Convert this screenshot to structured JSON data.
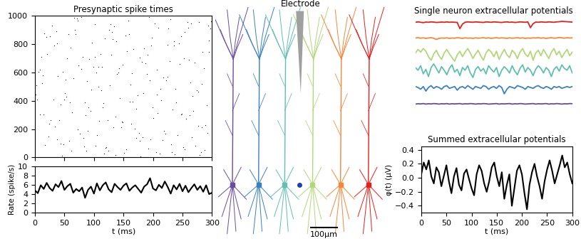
{
  "chart_data": [
    {
      "type": "scatter",
      "title": "Presynaptic spike times",
      "color": "#000000",
      "marker": "point",
      "tick_labels": "y",
      "xlim": [
        0,
        300
      ],
      "xticks": [
        0,
        50,
        100,
        150,
        200,
        250,
        300
      ],
      "ylim": [
        0,
        1000
      ],
      "yticks": [
        0,
        200,
        400,
        600,
        800,
        1000
      ],
      "x": [
        3,
        17,
        29,
        41,
        55,
        62,
        78,
        84,
        97,
        105,
        112,
        126,
        133,
        148,
        151,
        167,
        172,
        189,
        196,
        203,
        214,
        228,
        231,
        247,
        256,
        263,
        279,
        284,
        291,
        298,
        8,
        14,
        33,
        46,
        51,
        69,
        73,
        88,
        92,
        109,
        118,
        121,
        139,
        144,
        158,
        163,
        177,
        182,
        199,
        207,
        211,
        225,
        238,
        242,
        259,
        268,
        271,
        287,
        295,
        1,
        11,
        24,
        36,
        44,
        58,
        65,
        71,
        86,
        99,
        103,
        115,
        129,
        136,
        141,
        153,
        169,
        174,
        185,
        192,
        209,
        219,
        222,
        235,
        249,
        252,
        266,
        274,
        281,
        293,
        6,
        19,
        27,
        39,
        48,
        53,
        67,
        76,
        81,
        94,
        107,
        113,
        124,
        131,
        146,
        156,
        161,
        179,
        187,
        194,
        201,
        216,
        229,
        233,
        244,
        254,
        261,
        277,
        289,
        297,
        13,
        21,
        31,
        43,
        57,
        63,
        74,
        89,
        101,
        117,
        127,
        137,
        143,
        159,
        171,
        183,
        197,
        205,
        217,
        226,
        239,
        251,
        264,
        276,
        283,
        299,
        9,
        26,
        38,
        49,
        61,
        79,
        91,
        104,
        119,
        132,
        149,
        162,
        176,
        191,
        206,
        221,
        236,
        248,
        258,
        272,
        286,
        4,
        16,
        34,
        52,
        68,
        82,
        96,
        111,
        123,
        138,
        154,
        166,
        181,
        193,
        208,
        224,
        237,
        253,
        267,
        282,
        294,
        23,
        47,
        72,
        87,
        102,
        116,
        134,
        147,
        164,
        178,
        198,
        213,
        232,
        245,
        262,
        278,
        292,
        12,
        37,
        59,
        83,
        108,
        128
      ],
      "values": [
        512,
        87,
        934,
        266,
        701,
        45,
        623,
        389,
        812,
        158,
        477,
        903,
        214,
        655,
        31,
        768,
        342,
        589,
        126,
        947,
        403,
        681,
        92,
        857,
        275,
        530,
        18,
        744,
        369,
        961,
        621,
        304,
        789,
        12,
        456,
        873,
        197,
        538,
        695,
        261,
        840,
        73,
        588,
        419,
        966,
        237,
        704,
        145,
        352,
        619,
        27,
        795,
        483,
        160,
        918,
        331,
        672,
        54,
        827,
        445,
        709,
        238,
        891,
        375,
        116,
        562,
        983,
        297,
        640,
        81,
        356,
        724,
        19,
        598,
        863,
        201,
        437,
        770,
        64,
        915,
        188,
        545,
        820,
        307,
        699,
        142,
        476,
        38,
        931,
        603,
        851,
        262,
        577,
        94,
        428,
        985,
        167,
        713,
        330,
        502,
        639,
        49,
        887,
        215,
        751,
        396,
        9,
        664,
        543,
        278,
        122,
        976,
        341,
        805,
        57,
        690,
        463,
        228,
        914,
        580,
        733,
        410,
        96,
        872,
        318,
        651,
        187,
        944,
        25,
        509,
        287,
        628,
        874,
        140,
        457,
        793,
        36,
        565,
        912,
        389,
        74,
        946,
        223,
        518,
        685,
        302,
        859,
        129,
        411,
        776,
        992,
        355,
        601,
        68,
        837,
        249,
        515,
        172,
        728,
        443,
        166,
        789,
        302,
        958,
        84,
        632,
        407,
        875,
        218,
        551,
        901,
        140,
        478,
        733,
        265,
        822,
        59,
        396,
        676,
        993,
        315,
        570,
        23,
        889,
        432,
        211,
        748,
        150,
        605,
        968,
        46,
        711,
        382,
        927,
        253,
        594,
        118,
        847,
        486,
        37,
        661,
        298,
        956,
        173,
        524,
        807,
        391,
        76,
        639,
        940
      ]
    },
    {
      "type": "line",
      "x_label": "t (ms)",
      "y_label": "Rate (spike/s)",
      "color": "#000000",
      "xlim": [
        0,
        300
      ],
      "xticks": [
        0,
        50,
        100,
        150,
        200,
        250,
        300
      ],
      "ylim": [
        0,
        10
      ],
      "yticks": [
        0,
        2,
        4,
        6,
        8,
        10
      ],
      "x": [
        0,
        5,
        10,
        15,
        20,
        25,
        30,
        35,
        40,
        45,
        50,
        55,
        60,
        65,
        70,
        75,
        80,
        85,
        90,
        95,
        100,
        105,
        110,
        115,
        120,
        125,
        130,
        135,
        140,
        145,
        150,
        155,
        160,
        165,
        170,
        175,
        180,
        185,
        190,
        195,
        200,
        205,
        210,
        215,
        220,
        225,
        230,
        235,
        240,
        245,
        250,
        255,
        260,
        265,
        270,
        275,
        280,
        285,
        290,
        295,
        300
      ],
      "values": [
        4.8,
        4.2,
        5.9,
        5.1,
        6.4,
        5.3,
        4.7,
        6.1,
        5.5,
        6.8,
        4.9,
        5.7,
        6.2,
        4.3,
        5.1,
        4.6,
        5.4,
        3.2,
        4.9,
        5.6,
        4.1,
        6.3,
        4.8,
        5.9,
        6.5,
        5.0,
        4.4,
        6.2,
        5.5,
        4.9,
        5.8,
        6.3,
        4.7,
        5.4,
        5.9,
        5.1,
        4.3,
        5.6,
        6.1,
        7.4,
        5.2,
        4.8,
        6.0,
        5.3,
        6.7,
        5.5,
        4.1,
        5.9,
        5.0,
        6.2,
        4.6,
        5.8,
        4.4,
        5.3,
        6.1,
        4.9,
        5.7,
        4.5,
        5.9,
        4.0,
        4.3
      ]
    },
    {
      "type": "line",
      "title": "Single neuron extracellular potentials",
      "tick_labels": false,
      "x": [
        0,
        5,
        10,
        15,
        20,
        25,
        30,
        35,
        40,
        45,
        50,
        55,
        60,
        65,
        70,
        75,
        80,
        85,
        90,
        95,
        100,
        105,
        110,
        115,
        120,
        125,
        130,
        135,
        140,
        145,
        150,
        155,
        160,
        165,
        170,
        175,
        180,
        185,
        190,
        195,
        200,
        205,
        210,
        215,
        220,
        225,
        230,
        235,
        240,
        245,
        250,
        255,
        260,
        265,
        270,
        275,
        280,
        285,
        290,
        295,
        300
      ],
      "series": [
        {
          "color": "#e3211c",
          "values": [
            0,
            0.02,
            0,
            -0.02,
            0.01,
            0,
            0.02,
            0.01,
            -0.01,
            0,
            0.01,
            0,
            0.02,
            0,
            0.01,
            0,
            -0.01,
            -0.35,
            -0.1,
            0,
            0.02,
            0.01,
            0,
            0.02,
            0.01,
            0,
            -0.01,
            0.02,
            0.01,
            0,
            0.02,
            0.01,
            0,
            -0.01,
            0.01,
            0.02,
            0,
            0.01,
            -0.01,
            0,
            0.02,
            0.01,
            0,
            0.02,
            -0.3,
            -0.08,
            0.01,
            0,
            0.02,
            0.01,
            0,
            0.02,
            0.01,
            0,
            0.02,
            0.03,
            0.05,
            0.04,
            0.03,
            0.02,
            0.01
          ]
        },
        {
          "color": "#f4873a",
          "values": [
            0.03,
            0.05,
            0.02,
            0.04,
            0.01,
            0.03,
            0.05,
            0.02,
            -0.05,
            0.01,
            0.03,
            0.02,
            0.04,
            0.01,
            0.03,
            0.02,
            0.05,
            0.03,
            0.01,
            0.04,
            0.02,
            0.03,
            0.01,
            0.04,
            0.02,
            0.03,
            0.05,
            0.02,
            0.04,
            0.01,
            0.03,
            0.05,
            0.02,
            0.04,
            0.03,
            0.01,
            0.04,
            0.02,
            0.03,
            0.05,
            0.02,
            0.04,
            0.01,
            0.03,
            0.02,
            0.04,
            0.03,
            0.05,
            0.02,
            0.04,
            0.01,
            0.03,
            0.05,
            0.02,
            0.03,
            0.06,
            0.04,
            0.02,
            0.05,
            0.03,
            0.04
          ]
        },
        {
          "color": "#b2d77a",
          "values": [
            0.1,
            0.3,
            0.15,
            0.35,
            0.2,
            -0.1,
            -0.3,
            0.05,
            0.25,
            -0.05,
            -0.25,
            0.1,
            0.3,
            0.05,
            -0.15,
            -0.35,
            0.0,
            0.2,
            -0.1,
            0.15,
            0.35,
            0.1,
            -0.2,
            0.05,
            0.25,
            -0.05,
            -0.3,
            0.1,
            0.3,
            0.15,
            -0.1,
            0.2,
            -0.25,
            0.05,
            0.3,
            0.0,
            -0.15,
            0.25,
            0.1,
            -0.2,
            0.15,
            0.35,
            0.05,
            -0.1,
            0.2,
            -0.3,
            0.1,
            0.25,
            -0.05,
            0.3,
            0.05,
            -0.2,
            0.15,
            0.35,
            0.0,
            0.2,
            -0.15,
            0.1,
            0.3,
            -0.05,
            0.15
          ]
        },
        {
          "color": "#5fbfb0",
          "values": [
            0.2,
            0.05,
            0.3,
            -0.15,
            0.1,
            -0.3,
            0.2,
            0.4,
            0.15,
            -0.1,
            0.25,
            0.05,
            -0.2,
            0.15,
            0.35,
            -0.05,
            0.1,
            -0.25,
            0.2,
            0.05,
            0.3,
            -0.1,
            -0.35,
            0.1,
            0.25,
            0.0,
            0.15,
            -0.15,
            0.3,
            0.1,
            -0.05,
            0.2,
            -0.3,
            0.05,
            0.25,
            0.1,
            -0.1,
            0.3,
            0.0,
            -0.2,
            0.15,
            0.35,
            -0.05,
            0.2,
            0.05,
            -0.25,
            0.1,
            0.3,
            0.15,
            -0.1,
            0.2,
            0.05,
            -0.3,
            0.1,
            0.25,
            0.0,
            0.35,
            0.15,
            0.05,
            0.3,
            -0.1
          ]
        },
        {
          "color": "#3a80c3",
          "values": [
            0.05,
            0.0,
            -0.1,
            0.05,
            -0.2,
            0.0,
            0.1,
            -0.05,
            0.05,
            0.0,
            -0.1,
            0.05,
            0.1,
            -0.05,
            0.0,
            0.05,
            -0.15,
            0.0,
            0.05,
            -0.05,
            0.1,
            0.0,
            -0.1,
            0.05,
            0.0,
            -0.05,
            0.1,
            0.05,
            -0.1,
            0.0,
            0.05,
            -0.05,
            0.1,
            0.0,
            -0.35,
            -0.1,
            0.05,
            0.0,
            -0.05,
            0.1,
            0.05,
            0.0,
            -0.1,
            0.05,
            0.0,
            -0.05,
            0.05,
            0.1,
            0.0,
            -0.05,
            0.05,
            0.0,
            -0.1,
            0.05,
            0.0,
            0.05,
            -0.05,
            0.0,
            0.05,
            0.0,
            0.05
          ]
        },
        {
          "color": "#6a4c9c",
          "values": [
            -0.02,
            0,
            -0.01,
            0.01,
            -0.02,
            0,
            -0.01,
            0.01,
            0,
            -0.02,
            0,
            -0.01,
            0.01,
            -0.02,
            0,
            -0.01,
            0,
            0.01,
            -0.02,
            0,
            -0.01,
            0.01,
            0,
            -0.02,
            0,
            -0.01,
            0.01,
            0,
            -0.02,
            -0.01,
            0,
            0.01,
            -0.02,
            0,
            -0.01,
            0,
            0.01,
            -0.02,
            0,
            -0.01,
            0.01,
            0,
            -0.02,
            -0.01,
            0,
            0.01,
            -0.02,
            0,
            -0.01,
            0,
            0.01,
            -0.02,
            0,
            -0.01,
            0.01,
            0,
            -0.02,
            0,
            -0.01,
            0.01,
            0
          ]
        }
      ]
    },
    {
      "type": "line",
      "title": "Summed extracellular potentials",
      "x_label": "t (ms)",
      "y_label": "φ(t) (μV)",
      "color": "#000000",
      "xlim": [
        0,
        300
      ],
      "xticks": [
        0,
        50,
        100,
        150,
        200,
        250,
        300
      ],
      "ylim": [
        -0.5,
        0.45
      ],
      "yticks": [
        {
          "value": -0.4,
          "label": "−0.4"
        },
        {
          "value": -0.2,
          "label": "−0.2"
        },
        0.0,
        0.2,
        0.4
      ],
      "x": [
        0,
        5,
        10,
        15,
        20,
        25,
        30,
        35,
        40,
        45,
        50,
        55,
        60,
        65,
        70,
        75,
        80,
        85,
        90,
        95,
        100,
        105,
        110,
        115,
        120,
        125,
        130,
        135,
        140,
        145,
        150,
        155,
        160,
        165,
        170,
        175,
        180,
        185,
        190,
        195,
        200,
        205,
        210,
        215,
        220,
        225,
        230,
        235,
        240,
        245,
        250,
        255,
        260,
        265,
        270,
        275,
        280,
        285,
        290,
        295,
        300
      ],
      "values": [
        0.05,
        0.22,
        0.12,
        0.25,
        0.02,
        -0.08,
        0.15,
        0.08,
        -0.12,
        0.03,
        0.18,
        -0.05,
        -0.22,
        0.02,
        0.14,
        -0.1,
        -0.18,
        0.06,
        0.12,
        -0.02,
        -0.15,
        -0.25,
        0.05,
        0.18,
        0.1,
        -0.08,
        -0.2,
        -0.05,
        0.15,
        0.22,
        0.02,
        -0.12,
        0.08,
        -0.3,
        -0.1,
        0.05,
        -0.4,
        -0.15,
        0.1,
        0.18,
        0.05,
        -0.22,
        -0.45,
        -0.1,
        0.08,
        0.2,
        0.02,
        -0.12,
        -0.3,
        -0.05,
        0.12,
        0.25,
        0.1,
        -0.08,
        0.05,
        0.18,
        0.32,
        0.15,
        0.22,
        0.05,
        -0.08
      ]
    }
  ],
  "diagram": {
    "electrode_label": "Electrode",
    "scale_bar_label": "100μm"
  }
}
